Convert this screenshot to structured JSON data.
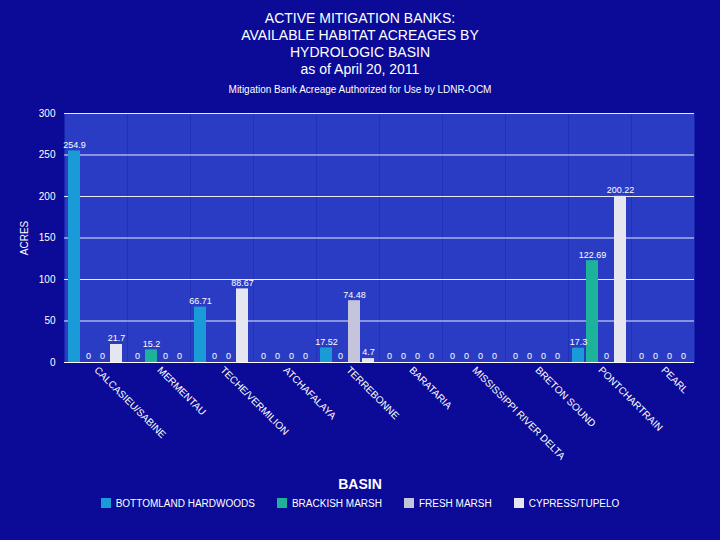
{
  "chart_data": {
    "type": "bar",
    "title": "ACTIVE MITIGATION BANKS:\nAVAILABLE HABITAT ACREAGES BY\nHYDROLOGIC BASIN\nas of April 20, 2011",
    "subtitle": "Mitigation Bank Acreage Authorized for Use by LDNR-OCM",
    "x_label": "BASIN",
    "y_label": "ACRES",
    "categories": [
      "CALCASIEU/SABINE",
      "MERMENTAU",
      "TECHE/VERMILION",
      "ATCHAFALAYA",
      "TERREBONNE",
      "BARATARIA",
      "MISSISSIPPI RIVER DELTA",
      "BRETON SOUND",
      "PONTCHARTRAIN",
      "PEARL"
    ],
    "series": [
      {
        "name": "BOTTOMLAND HARDWOODS",
        "color": "#1a9ad6",
        "values": [
          254.9,
          0,
          66.71,
          0,
          17.52,
          0,
          0,
          0,
          17.3,
          0
        ]
      },
      {
        "name": "BRACKISH MARSH",
        "color": "#1db39a",
        "values": [
          0,
          15.2,
          0,
          0,
          0,
          0,
          0,
          0,
          122.69,
          0
        ]
      },
      {
        "name": "FRESH MARSH",
        "color": "#c4c4dc",
        "values": [
          0,
          0,
          0,
          0,
          74.48,
          0,
          0,
          0,
          0,
          0
        ]
      },
      {
        "name": "CYPRESS/TUPELO",
        "color": "#e6e6f0",
        "values": [
          21.7,
          0,
          88.67,
          0,
          4.7,
          0,
          0,
          0,
          200.22,
          0
        ]
      }
    ],
    "ylim": [
      0,
      300
    ],
    "yticks": [
      0,
      50,
      100,
      150,
      200,
      250,
      300
    ],
    "grid": true,
    "data_labels": true,
    "legend": "bottom"
  }
}
